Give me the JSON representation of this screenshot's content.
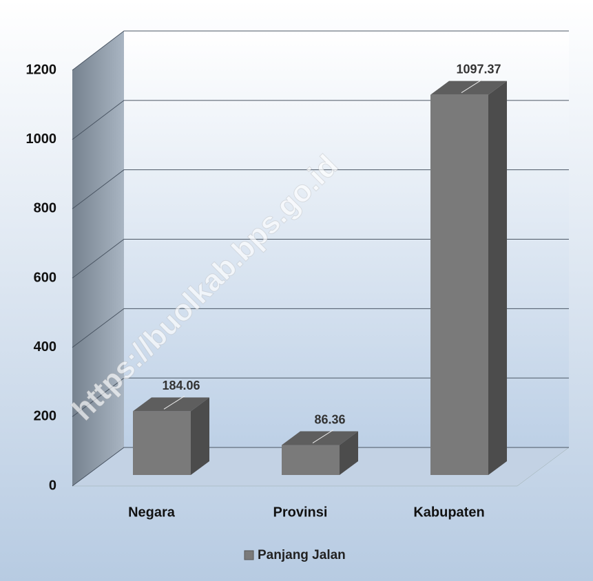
{
  "chart_data": {
    "type": "bar3d",
    "categories": [
      "Negara",
      "Provinsi",
      "Kabupaten"
    ],
    "series": [
      {
        "name": "Panjang Jalan",
        "color": "#7a7a7a",
        "values": [
          184.06,
          86.36,
          1097.37
        ]
      }
    ],
    "ylim": [
      0,
      1200
    ],
    "yticks": [
      0,
      200,
      400,
      600,
      800,
      1000,
      1200
    ],
    "grid": true,
    "legend": "bottom",
    "watermark": "https://buolkab.bps.go.id"
  }
}
